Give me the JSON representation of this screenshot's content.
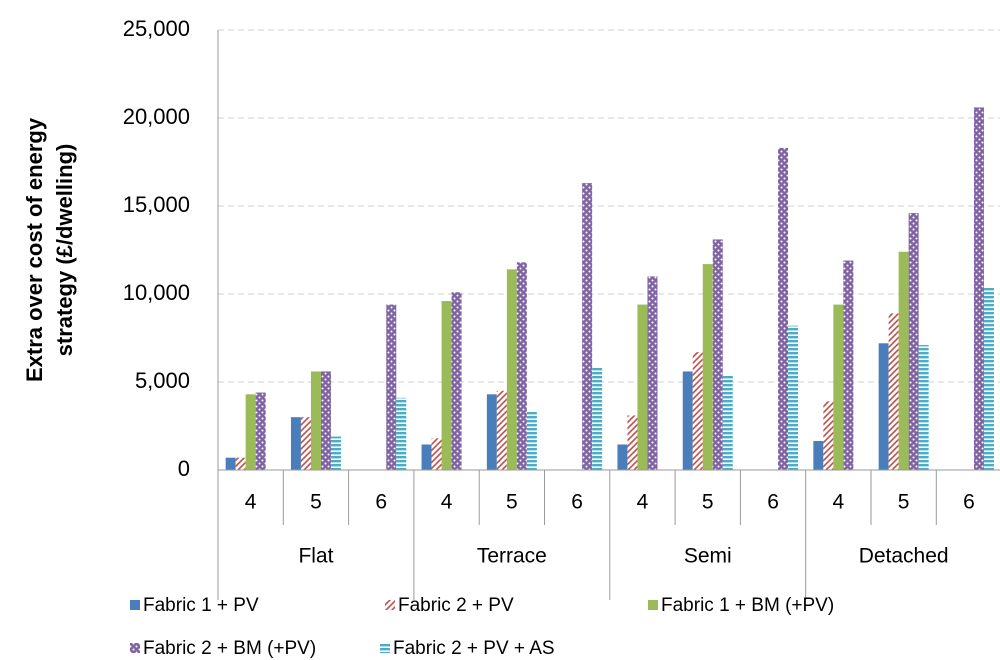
{
  "chart_data": {
    "type": "bar",
    "ylabel": [
      "Extra over cost of energy",
      "strategy (£/dwelling)"
    ],
    "categories": [
      "4",
      "5",
      "6",
      "4",
      "5",
      "6",
      "4",
      "5",
      "6",
      "4",
      "5",
      "6"
    ],
    "group_labels": [
      "Flat",
      "Terrace",
      "Semi",
      "Detached"
    ],
    "series": [
      {
        "name": "Fabric 1 + PV",
        "color": "#4a7ebb",
        "pattern": "solid",
        "values": [
          700,
          3000,
          null,
          1450,
          4300,
          null,
          1450,
          5600,
          null,
          1650,
          7200,
          null
        ]
      },
      {
        "name": "Fabric 2 + PV",
        "color": "#c0504d",
        "pattern": "hatch",
        "values": [
          700,
          3000,
          null,
          1800,
          4500,
          null,
          3100,
          6700,
          null,
          3900,
          8900,
          null
        ]
      },
      {
        "name": "Fabric 1 + BM (+PV)",
        "color": "#9bbb59",
        "pattern": "solid",
        "values": [
          4300,
          5600,
          null,
          9600,
          11400,
          null,
          9400,
          11700,
          null,
          9400,
          12400,
          null
        ]
      },
      {
        "name": "Fabric 2 + BM (+PV)",
        "color": "#8064a2",
        "pattern": "dots",
        "values": [
          4400,
          5600,
          9400,
          10100,
          11800,
          16300,
          11000,
          13100,
          18300,
          11900,
          14600,
          20600
        ]
      },
      {
        "name": "Fabric 2 + PV + AS",
        "color": "#4bacc6",
        "pattern": "stripes",
        "values": [
          null,
          1900,
          4100,
          null,
          3300,
          5800,
          null,
          5400,
          8200,
          null,
          7100,
          10400
        ]
      }
    ],
    "ylim": [
      0,
      25000
    ],
    "yticks": [
      0,
      {
        "value": 5000,
        "label": "5,000"
      },
      {
        "value": 10000,
        "label": "10,000"
      },
      {
        "value": 15000,
        "label": "15,000"
      },
      {
        "value": 20000,
        "label": "20,000"
      },
      {
        "value": 25000,
        "label": "25,000"
      }
    ],
    "grid": true,
    "legend": "bottom"
  }
}
